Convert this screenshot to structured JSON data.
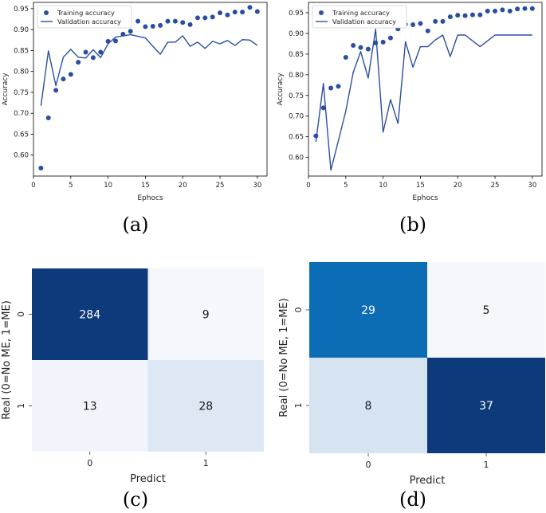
{
  "chart_data": [
    {
      "type": "line",
      "panel": "a",
      "caption": "(a)",
      "xlabel": "Ephocs",
      "ylabel": "Accuracy",
      "xlim": [
        0,
        31.3
      ],
      "ylim": [
        0.55,
        0.965
      ],
      "xticks": [
        0,
        5,
        10,
        15,
        20,
        25,
        30
      ],
      "yticks": [
        0.6,
        0.65,
        0.7,
        0.75,
        0.8,
        0.85,
        0.9,
        0.95
      ],
      "grid": false,
      "legend": "top-left",
      "x": [
        1,
        2,
        3,
        4,
        5,
        6,
        7,
        8,
        9,
        10,
        11,
        12,
        13,
        14,
        15,
        16,
        17,
        18,
        19,
        20,
        21,
        22,
        23,
        24,
        25,
        26,
        27,
        28,
        29,
        30
      ],
      "series": [
        {
          "name": "Training accuracy",
          "style": "points",
          "color": "#2a4fa0",
          "values": [
            0.569,
            0.689,
            0.755,
            0.782,
            0.793,
            0.822,
            0.846,
            0.833,
            0.846,
            0.872,
            0.873,
            0.889,
            0.896,
            0.92,
            0.907,
            0.908,
            0.91,
            0.92,
            0.92,
            0.917,
            0.912,
            0.928,
            0.928,
            0.93,
            0.94,
            0.935,
            0.942,
            0.942,
            0.953,
            0.943
          ]
        },
        {
          "name": "Validation accuracy",
          "style": "line",
          "color": "#2a4fa0",
          "values": [
            0.718,
            0.849,
            0.766,
            0.834,
            0.853,
            0.834,
            0.832,
            0.852,
            0.833,
            0.866,
            0.882,
            0.885,
            0.888,
            0.884,
            0.88,
            0.86,
            0.841,
            0.87,
            0.87,
            0.885,
            0.86,
            0.87,
            0.855,
            0.872,
            0.866,
            0.874,
            0.862,
            0.876,
            0.875,
            0.862
          ]
        }
      ]
    },
    {
      "type": "line",
      "panel": "b",
      "caption": "(b)",
      "xlabel": "Ephocs",
      "ylabel": "Accuracy",
      "xlim": [
        0,
        31.3
      ],
      "ylim": [
        0.555,
        0.975
      ],
      "xticks": [
        0,
        5,
        10,
        15,
        20,
        25,
        30
      ],
      "yticks": [
        0.6,
        0.65,
        0.7,
        0.75,
        0.8,
        0.85,
        0.9,
        0.95
      ],
      "grid": false,
      "legend": "top-left",
      "x": [
        1,
        2,
        3,
        4,
        5,
        6,
        7,
        8,
        9,
        10,
        11,
        12,
        13,
        14,
        15,
        16,
        17,
        18,
        19,
        20,
        21,
        22,
        23,
        24,
        25,
        26,
        27,
        28,
        29,
        30
      ],
      "series": [
        {
          "name": "Training accuracy",
          "style": "points",
          "color": "#2a4fa0",
          "values": [
            0.652,
            0.72,
            0.768,
            0.772,
            0.842,
            0.871,
            0.866,
            0.862,
            0.877,
            0.879,
            0.889,
            0.911,
            0.922,
            0.921,
            0.924,
            0.906,
            0.929,
            0.929,
            0.94,
            0.944,
            0.943,
            0.945,
            0.945,
            0.954,
            0.954,
            0.957,
            0.954,
            0.959,
            0.96,
            0.96
          ]
        },
        {
          "name": "Validation accuracy",
          "style": "line",
          "color": "#2a4fa0",
          "values": [
            0.638,
            0.779,
            0.569,
            0.64,
            0.712,
            0.806,
            0.856,
            0.792,
            0.91,
            0.661,
            0.74,
            0.682,
            0.88,
            0.818,
            0.868,
            0.868,
            0.884,
            0.896,
            0.844,
            0.896,
            0.896,
            0.882,
            0.868,
            0.882,
            0.896,
            0.896,
            0.896,
            0.896,
            0.896,
            0.896
          ]
        }
      ]
    },
    {
      "type": "heatmap",
      "panel": "c",
      "caption": "(c)",
      "xlabel": "Predict",
      "ylabel": "Real  (0=No ME, 1=ME)",
      "x_categories": [
        "0",
        "1"
      ],
      "y_categories": [
        "0",
        "1"
      ],
      "values": [
        [
          284,
          9
        ],
        [
          13,
          28
        ]
      ],
      "cell_colors": [
        [
          "#0d3a7a",
          "#f4f7fc"
        ],
        [
          "#f1f5fb",
          "#dde8f4"
        ]
      ],
      "text_colors": [
        [
          "#ffffff",
          "#1a1a1a"
        ],
        [
          "#1a1a1a",
          "#1a1a1a"
        ]
      ]
    },
    {
      "type": "heatmap",
      "panel": "d",
      "caption": "(d)",
      "xlabel": "Predict",
      "ylabel": "Real  (0=No ME, 1=ME)",
      "x_categories": [
        "0",
        "1"
      ],
      "y_categories": [
        "0",
        "1"
      ],
      "values": [
        [
          29,
          5
        ],
        [
          8,
          37
        ]
      ],
      "cell_colors": [
        [
          "#0c6db5",
          "#f4f7fc"
        ],
        [
          "#d6e3f1",
          "#0d3a7a"
        ]
      ],
      "text_colors": [
        [
          "#ffffff",
          "#1a1a1a"
        ],
        [
          "#1a1a1a",
          "#ffffff"
        ]
      ]
    }
  ]
}
